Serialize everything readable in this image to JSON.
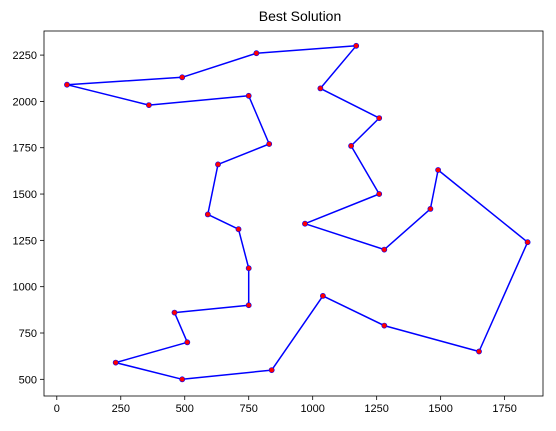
{
  "chart_data": {
    "type": "line",
    "title": "Best Solution",
    "xlabel": "",
    "ylabel": "",
    "xlim": [
      -50,
      1900
    ],
    "ylim": [
      410,
      2380
    ],
    "xticks": [
      0,
      250,
      500,
      750,
      1000,
      1250,
      1500,
      1750
    ],
    "yticks": [
      500,
      750,
      1000,
      1250,
      1500,
      1750,
      2000,
      2250
    ],
    "grid": false,
    "series": [
      {
        "line_color": "#0000ff",
        "marker_color": "#ff0000",
        "marker_edge_color": "#0000ff",
        "points": [
          [
            1170,
            2300
          ],
          [
            780,
            2260
          ],
          [
            490,
            2130
          ],
          [
            40,
            2090
          ],
          [
            360,
            1980
          ],
          [
            750,
            2030
          ],
          [
            830,
            1770
          ],
          [
            630,
            1660
          ],
          [
            590,
            1390
          ],
          [
            710,
            1310
          ],
          [
            750,
            1100
          ],
          [
            750,
            900
          ],
          [
            460,
            860
          ],
          [
            510,
            700
          ],
          [
            230,
            590
          ],
          [
            490,
            500
          ],
          [
            840,
            550
          ],
          [
            1040,
            950
          ],
          [
            1280,
            790
          ],
          [
            1650,
            650
          ],
          [
            1840,
            1240
          ],
          [
            1490,
            1630
          ],
          [
            1460,
            1420
          ],
          [
            1280,
            1200
          ],
          [
            970,
            1340
          ],
          [
            1260,
            1500
          ],
          [
            1150,
            1760
          ],
          [
            1260,
            1910
          ],
          [
            1030,
            2070
          ],
          [
            1170,
            2300
          ]
        ]
      }
    ]
  }
}
